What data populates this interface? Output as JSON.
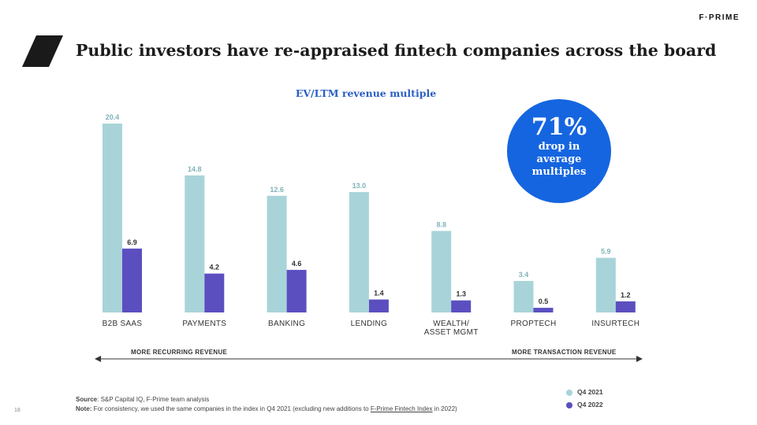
{
  "header": {
    "title": "Public investors have re-appraised fintech companies across the board",
    "brand": "F·PRIME"
  },
  "callout": {
    "big": "71%",
    "text": "drop in average multiples"
  },
  "chart_data": {
    "type": "bar",
    "title": "EV/LTM revenue multiple",
    "categories": [
      "B2B SAAS",
      "PAYMENTS",
      "BANKING",
      "LENDING",
      "WEALTH/ ASSET MGMT",
      "PROPTECH",
      "INSURTECH"
    ],
    "series": [
      {
        "name": "Q4 2021",
        "color": "#a8d4d9",
        "values": [
          20.4,
          14.8,
          12.6,
          13.0,
          8.8,
          3.4,
          5.9
        ]
      },
      {
        "name": "Q4 2022",
        "color": "#5b4fc0",
        "values": [
          6.9,
          4.2,
          4.6,
          1.4,
          1.3,
          0.5,
          1.2
        ]
      }
    ],
    "value_labels": [
      [
        "20.4",
        "14.8",
        "12.6",
        "13.0",
        "8.8",
        "3.4",
        "5.9"
      ],
      [
        "6.9",
        "4.2",
        "4.6",
        "1.4",
        "1.3",
        "0.5",
        "1.2"
      ]
    ],
    "ylim": [
      0,
      21.5
    ],
    "grid": false,
    "legend_position": "bottom-right"
  },
  "axis_annotations": {
    "left": "MORE RECURRING REVENUE",
    "right": "MORE TRANSACTION REVENUE"
  },
  "footer": {
    "source_label": "Source",
    "source_text": ": S&P Capital IQ, F-Prime team analysis",
    "note_label": "Note:",
    "note_text": " For consistency, we used the same companies in the index in Q4 2021 (excluding new additions to ",
    "note_link": "F-Prime Fintech Index",
    "note_end": " in 2022)"
  },
  "legend": {
    "q4_2021": "Q4 2021",
    "q4_2022": "Q4 2022"
  },
  "page_number": "18"
}
